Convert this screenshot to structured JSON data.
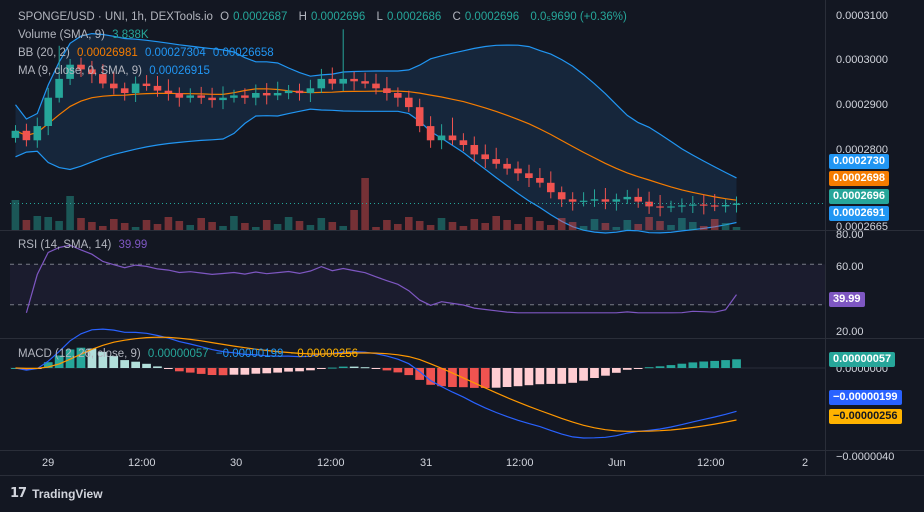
{
  "header": {
    "symbol": "SPONGE/USD · UNI, 1h, DEXTools.io",
    "ohlc": [
      {
        "label": "O",
        "value": "0.0002687"
      },
      {
        "label": "H",
        "value": "0.0002696"
      },
      {
        "label": "L",
        "value": "0.0002686"
      },
      {
        "label": "C",
        "value": "0.0002696"
      }
    ],
    "change": "0.0₅9690 (+0.36%)"
  },
  "indicators": {
    "volume": {
      "label": "Volume (SMA, 9)",
      "value": "3.838K"
    },
    "bb": {
      "label": "BB (20, 2)",
      "basis": "0.00026981",
      "upper": "0.00027304",
      "lower": "0.00026658"
    },
    "ma": {
      "label": "MA (9, close, 0, SMA, 9)",
      "value": "0.00026915"
    },
    "rsi": {
      "label": "RSI (14, SMA, 14)",
      "value": "39.99"
    },
    "macd": {
      "label": "MACD (12, 26, close, 9)",
      "hist": "0.00000057",
      "macd": "−0.00000199",
      "signal": "−0.00000256"
    }
  },
  "colors": {
    "background": "#131722",
    "up": "#26a69a",
    "down": "#ef5350",
    "bb": "#2196f3",
    "bb_fill": "#1b3a5a",
    "basis": "#f57c00",
    "rsi": "#7e57c2",
    "macd": "#2962ff",
    "signal": "#ff9800"
  },
  "price_axis": {
    "ticks": [
      "0.0003100",
      "0.0003000",
      "0.0002900",
      "0.0002800",
      "0.0002665"
    ],
    "tags": [
      {
        "text": "0.0002730",
        "color": "#2196f3",
        "value": 0.000273
      },
      {
        "text": "0.0002698",
        "color": "#f57c00",
        "value": 0.0002698
      },
      {
        "text": "0.0002696",
        "color": "#26a69a",
        "value": 0.0002696
      },
      {
        "text": "0.0002691",
        "color": "#2196f3",
        "value": 0.0002691
      }
    ]
  },
  "rsi_axis": {
    "ticks": [
      "80.00",
      "60.00",
      "20.00"
    ],
    "tag": "39.99"
  },
  "macd_axis": {
    "ticks": [
      "0.0000000",
      "−0.0000040"
    ],
    "tags": [
      {
        "text": "0.00000057",
        "color": "#26a69a"
      },
      {
        "text": "−0.00000199",
        "color": "#2962ff"
      },
      {
        "text": "−0.00000256",
        "color": "#ffb300"
      }
    ]
  },
  "time_axis": [
    "29",
    "12:00",
    "30",
    "12:00",
    "31",
    "12:00",
    "Jun",
    "12:00",
    "2"
  ],
  "brand": {
    "name": "TradingView",
    "logo_text": "17"
  },
  "chart_data": {
    "type": "candlestick",
    "timeframe": "1h",
    "ylim": [
      0.000264,
      0.000311
    ],
    "candles_close": [
      0.000285,
      0.000283,
      0.000286,
      0.000292,
      0.000296,
      0.000299,
      0.000298,
      0.000297,
      0.000295,
      0.000294,
      0.000293,
      0.000295,
      0.0002945,
      0.0002935,
      0.000293,
      0.000292,
      0.0002925,
      0.000292,
      0.0002915,
      0.000292,
      0.0002925,
      0.000292,
      0.000293,
      0.0002925,
      0.000293,
      0.0002935,
      0.000293,
      0.000294,
      0.000296,
      0.000295,
      0.000296,
      0.0002955,
      0.000295,
      0.000294,
      0.000293,
      0.000292,
      0.00029,
      0.000286,
      0.000283,
      0.000284,
      0.000283,
      0.000282,
      0.00028,
      0.000279,
      0.000278,
      0.000277,
      0.000276,
      0.000275,
      0.000274,
      0.000272,
      0.0002705,
      0.00027,
      0.0002702,
      0.0002705,
      0.00027,
      0.0002705,
      0.000271,
      0.00027,
      0.000269,
      0.0002688,
      0.000269,
      0.0002692,
      0.0002694,
      0.0002692,
      0.000269,
      0.0002693,
      0.0002696
    ],
    "rsi_range": [
      0,
      100
    ],
    "rsi_levels": [
      70,
      30
    ],
    "rsi_last": 39.99
  }
}
